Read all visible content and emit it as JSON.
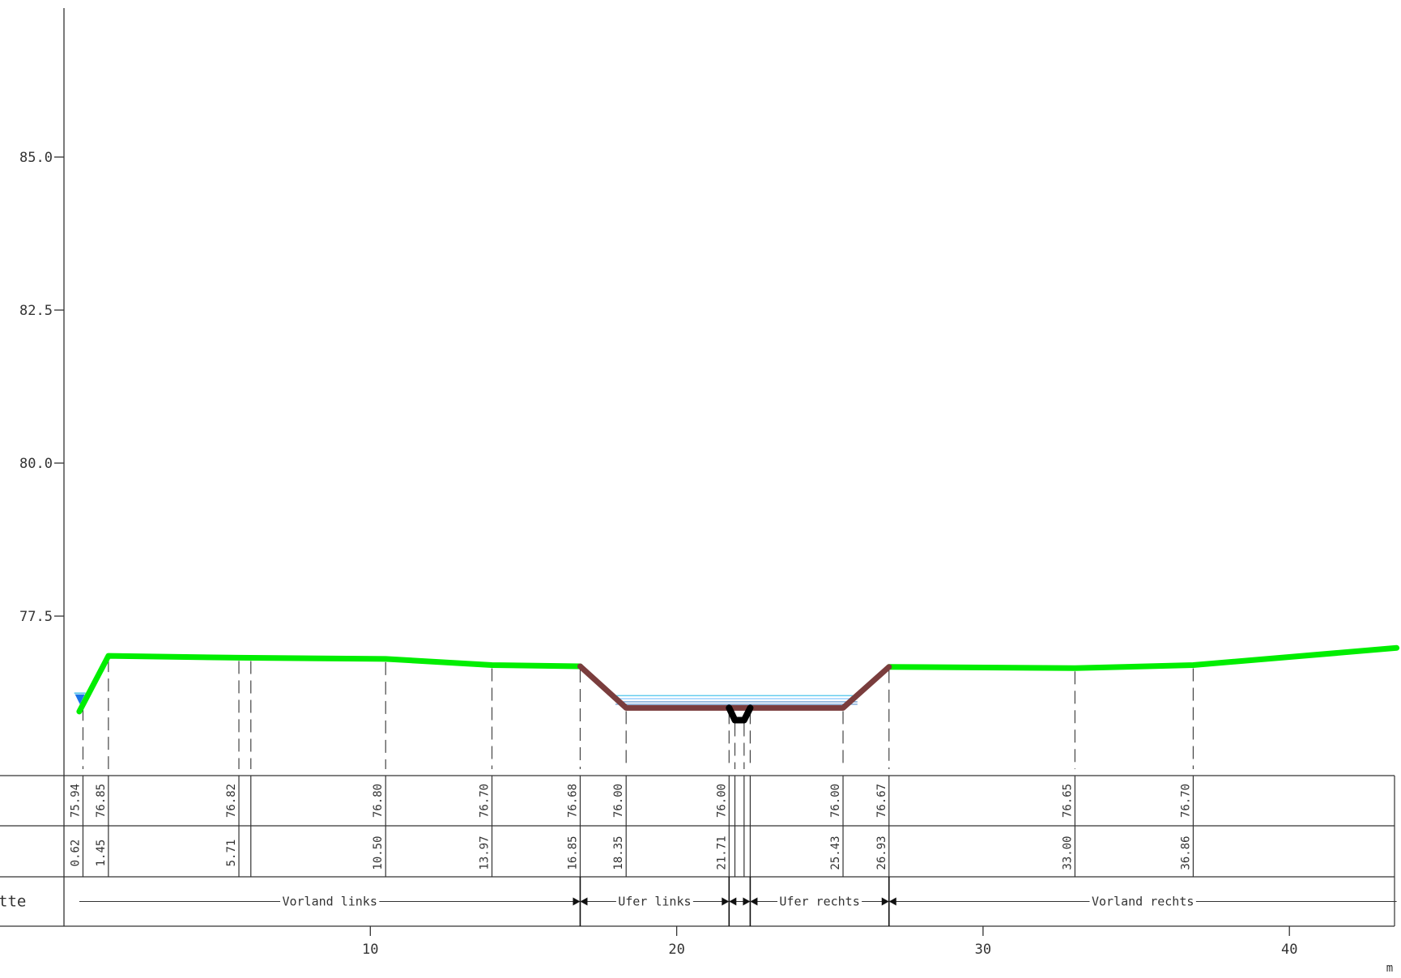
{
  "chart_data": {
    "type": "line",
    "x_unit": "m",
    "xlim": [
      0,
      43.5
    ],
    "ylim": [
      73.4,
      87.5
    ],
    "x_ticks": [
      10,
      20,
      30,
      40
    ],
    "y_ticks": [
      {
        "value": 77.5,
        "label": "77.5"
      },
      {
        "value": 80.0,
        "label": "80.0"
      },
      {
        "value": 82.5,
        "label": "82.5"
      },
      {
        "value": 85.0,
        "label": "85.0"
      }
    ],
    "water_levels": [
      76.2,
      76.15,
      76.1,
      76.06
    ],
    "water_extent": [
      18.0,
      25.9
    ],
    "profile_green_left": [
      [
        0.5,
        75.94
      ],
      [
        1.45,
        76.85
      ],
      [
        5.71,
        76.82
      ],
      [
        10.5,
        76.8
      ],
      [
        13.97,
        76.7
      ],
      [
        16.85,
        76.68
      ]
    ],
    "profile_bank": [
      [
        16.85,
        76.68
      ],
      [
        18.35,
        76.0
      ],
      [
        21.71,
        76.0
      ],
      [
        22.4,
        76.0
      ],
      [
        25.43,
        76.0
      ],
      [
        26.93,
        76.67
      ]
    ],
    "profile_channel": [
      [
        21.71,
        76.0
      ],
      [
        21.9,
        75.8
      ],
      [
        22.2,
        75.8
      ],
      [
        22.4,
        76.0
      ]
    ],
    "profile_green_right": [
      [
        26.93,
        76.67
      ],
      [
        33.0,
        76.65
      ],
      [
        36.86,
        76.7
      ],
      [
        43.5,
        76.98
      ]
    ],
    "verticals": [
      0.62,
      1.45,
      5.71,
      6.1,
      10.5,
      13.97,
      16.85,
      18.35,
      21.71,
      21.9,
      22.2,
      22.4,
      25.43,
      26.93,
      33.0,
      36.86
    ],
    "table_heights": [
      {
        "x": 0.62,
        "label": "75.94"
      },
      {
        "x": 1.45,
        "label": "76.85"
      },
      {
        "x": 5.71,
        "label": "76.82"
      },
      {
        "x": 10.5,
        "label": "76.80"
      },
      {
        "x": 13.97,
        "label": "76.70"
      },
      {
        "x": 16.85,
        "label": "76.68"
      },
      {
        "x": 18.35,
        "label": "76.00"
      },
      {
        "x": 21.71,
        "label": "76.00"
      },
      {
        "x": 25.43,
        "label": "76.00"
      },
      {
        "x": 26.93,
        "label": "76.67"
      },
      {
        "x": 33.0,
        "label": "76.65"
      },
      {
        "x": 36.86,
        "label": "76.70"
      }
    ],
    "table_stations": [
      {
        "x": 0.62,
        "label": "0.62"
      },
      {
        "x": 1.45,
        "label": "1.45"
      },
      {
        "x": 5.71,
        "label": "5.71"
      },
      {
        "x": 10.5,
        "label": "10.50"
      },
      {
        "x": 13.97,
        "label": "13.97"
      },
      {
        "x": 16.85,
        "label": "16.85"
      },
      {
        "x": 18.35,
        "label": "18.35"
      },
      {
        "x": 21.71,
        "label": "21.71"
      },
      {
        "x": 25.43,
        "label": "25.43"
      },
      {
        "x": 26.93,
        "label": "26.93"
      },
      {
        "x": 33.0,
        "label": "33.00"
      },
      {
        "x": 36.86,
        "label": "36.86"
      }
    ],
    "row_label": "tte",
    "sections": [
      {
        "from": 0.5,
        "to": 16.85,
        "label": "Vorland links"
      },
      {
        "from": 16.85,
        "to": 21.71,
        "label": "Ufer links"
      },
      {
        "from": 21.71,
        "to": 22.4,
        "label": ""
      },
      {
        "from": 22.4,
        "to": 26.93,
        "label": "Ufer rechts"
      },
      {
        "from": 26.93,
        "to": 43.5,
        "label": "Vorland rechts"
      }
    ],
    "colors": {
      "terrain": "#00ee00",
      "bank": "#7a3d3d",
      "channel": "#000000",
      "water": "#66ccee",
      "water_marker": "#1a73e8"
    }
  }
}
